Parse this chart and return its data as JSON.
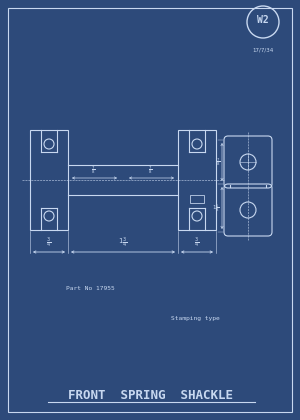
{
  "bg_color": "#2d4a7a",
  "line_color": "#c8d8f0",
  "title": "FRONT  SPRING  SHACKLE",
  "badge_text": "W2",
  "badge_sub": "17/7/34",
  "note1": "Part No 17955",
  "note2": "Stamping type",
  "fig_width": 3.0,
  "fig_height": 4.2
}
